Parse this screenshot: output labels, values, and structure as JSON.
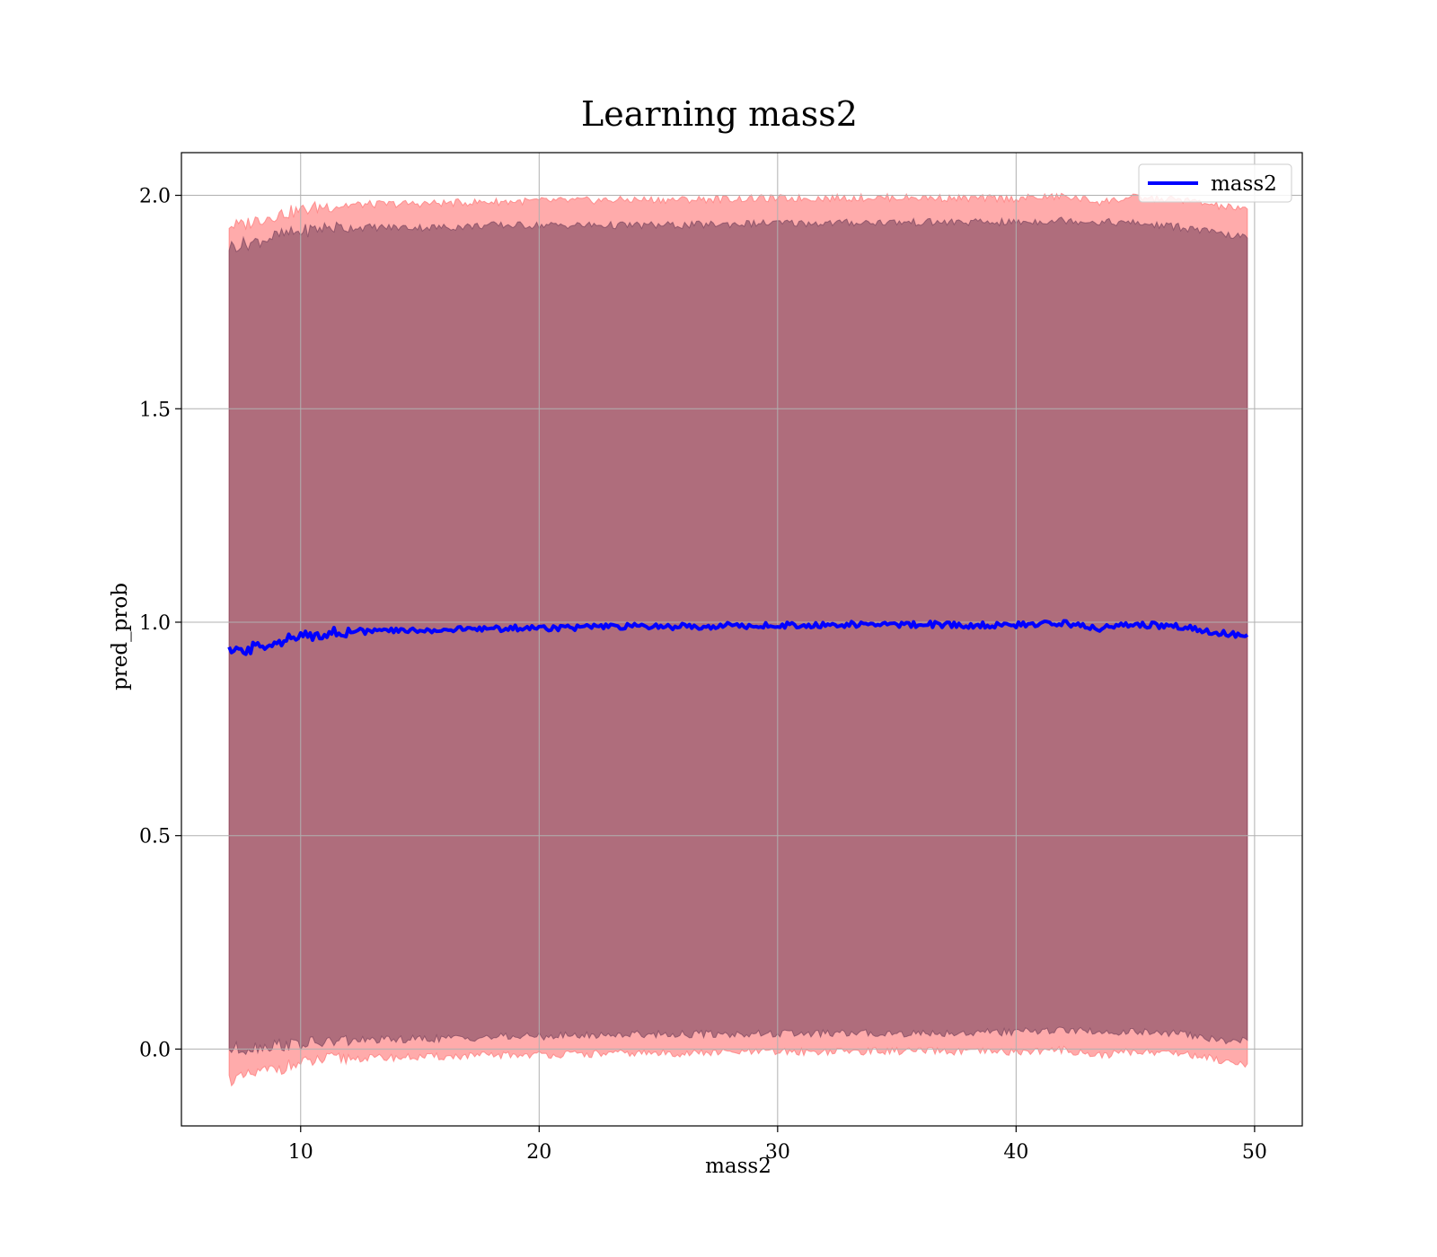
{
  "chart_data": {
    "type": "line",
    "title": "Learning mass2",
    "xlabel": "mass2",
    "ylabel": "pred_prob",
    "xlim": [
      5,
      52
    ],
    "ylim": [
      -0.18,
      2.1
    ],
    "xticks": [
      10,
      20,
      30,
      40,
      50
    ],
    "xtick_labels": [
      "10",
      "20",
      "30",
      "40",
      "50"
    ],
    "yticks": [
      0.0,
      0.5,
      1.0,
      1.5,
      2.0
    ],
    "ytick_labels": [
      "0.0",
      "0.5",
      "1.0",
      "1.5",
      "2.0"
    ],
    "grid": true,
    "legend_position": "top-right",
    "series": [
      {
        "name": "mass2",
        "color": "#0000ff",
        "x": [
          7.0,
          7.5,
          8.0,
          9.0,
          10.0,
          11.0,
          12.0,
          14.0,
          16.0,
          18.0,
          20.0,
          22.0,
          24.0,
          26.0,
          28.0,
          30.0,
          32.0,
          34.0,
          36.0,
          38.0,
          40.0,
          42.0,
          43.5,
          45.0,
          47.0,
          48.5,
          49.2,
          49.7
        ],
        "y": [
          0.93,
          0.93,
          0.94,
          0.955,
          0.965,
          0.975,
          0.978,
          0.98,
          0.982,
          0.985,
          0.987,
          0.988,
          0.99,
          0.99,
          0.992,
          0.993,
          0.994,
          0.995,
          0.995,
          0.993,
          0.993,
          0.998,
          0.985,
          0.995,
          0.99,
          0.975,
          0.97,
          0.965
        ]
      }
    ],
    "bands": [
      {
        "kind": "outer",
        "color": "#ff6666",
        "opacity": 0.55,
        "x": [
          7.0,
          7.5,
          8.0,
          9.0,
          10.0,
          11.0,
          12.0,
          14.0,
          16.0,
          18.0,
          20.0,
          22.0,
          24.0,
          26.0,
          28.0,
          30.0,
          32.0,
          34.0,
          36.0,
          38.0,
          40.0,
          42.0,
          43.5,
          45.0,
          47.0,
          48.5,
          49.2,
          49.7
        ],
        "upper": [
          1.93,
          1.93,
          1.94,
          1.955,
          1.965,
          1.975,
          1.978,
          1.98,
          1.982,
          1.985,
          1.987,
          1.988,
          1.99,
          1.99,
          1.992,
          1.993,
          1.994,
          1.995,
          1.995,
          1.993,
          1.993,
          1.998,
          1.985,
          1.995,
          1.99,
          1.975,
          1.97,
          1.965
        ],
        "lower": [
          -0.07,
          -0.07,
          -0.06,
          -0.045,
          -0.035,
          -0.025,
          -0.022,
          -0.02,
          -0.018,
          -0.015,
          -0.013,
          -0.012,
          -0.01,
          -0.01,
          -0.008,
          -0.007,
          -0.006,
          -0.005,
          -0.005,
          -0.007,
          -0.007,
          -0.002,
          -0.015,
          -0.005,
          -0.01,
          -0.025,
          -0.03,
          -0.035
        ]
      },
      {
        "kind": "inner",
        "color": "#6e3a56",
        "opacity": 0.55,
        "x": [
          7.0,
          7.5,
          8.0,
          9.0,
          10.0,
          11.0,
          12.0,
          14.0,
          16.0,
          18.0,
          20.0,
          22.0,
          24.0,
          26.0,
          28.0,
          30.0,
          32.0,
          34.0,
          36.0,
          38.0,
          40.0,
          42.0,
          43.5,
          45.0,
          47.0,
          48.5,
          49.2,
          49.7
        ],
        "upper": [
          1.88,
          1.885,
          1.89,
          1.905,
          1.915,
          1.925,
          1.925,
          1.925,
          1.925,
          1.93,
          1.93,
          1.93,
          1.93,
          1.93,
          1.933,
          1.935,
          1.935,
          1.937,
          1.937,
          1.937,
          1.937,
          1.942,
          1.938,
          1.935,
          1.925,
          1.91,
          1.905,
          1.9
        ],
        "lower": [
          0.0,
          0.0,
          0.005,
          0.01,
          0.012,
          0.015,
          0.02,
          0.022,
          0.025,
          0.028,
          0.03,
          0.032,
          0.035,
          0.035,
          0.035,
          0.036,
          0.036,
          0.037,
          0.037,
          0.038,
          0.04,
          0.045,
          0.04,
          0.04,
          0.035,
          0.02,
          0.02,
          0.02
        ]
      }
    ]
  }
}
